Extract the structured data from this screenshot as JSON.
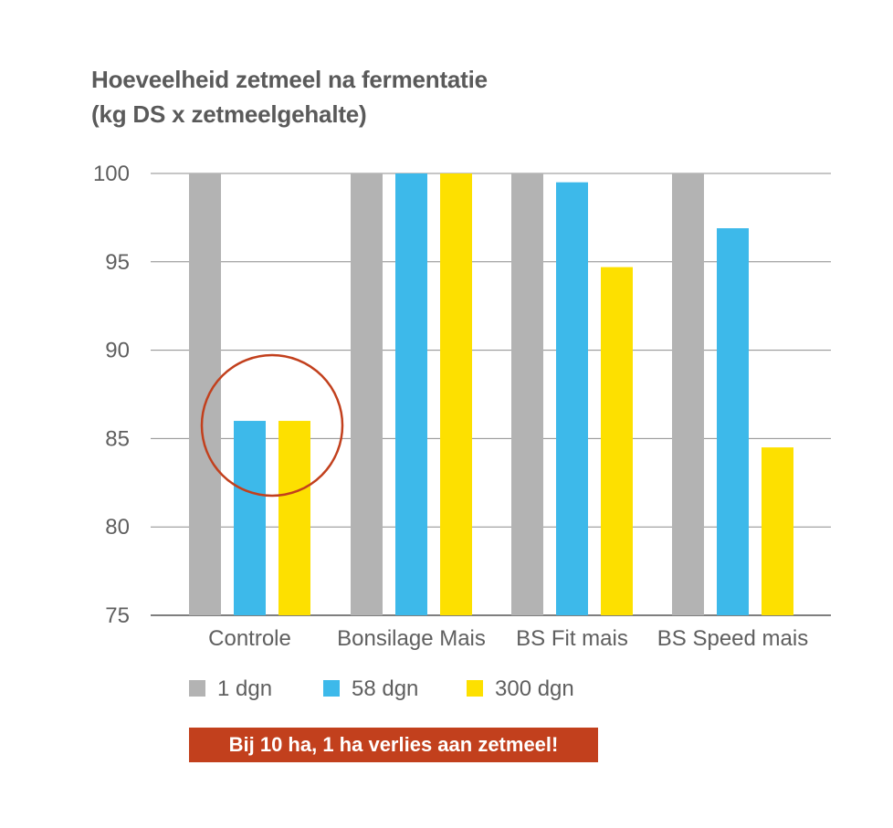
{
  "chart_data": {
    "type": "bar",
    "title_lines": [
      "Hoeveelheid zetmeel na fermentatie",
      "(kg DS x zetmeelgehalte)"
    ],
    "categories": [
      "Controle",
      "Bonsilage Mais",
      "BS Fit mais",
      "BS Speed mais"
    ],
    "series": [
      {
        "name": "1 dgn",
        "color": "#b3b3b3",
        "values": [
          100,
          100,
          100,
          100
        ]
      },
      {
        "name": "58 dgn",
        "color": "#3db9ea",
        "values": [
          86,
          100,
          99.5,
          96.9
        ]
      },
      {
        "name": "300 dgn",
        "color": "#fde000",
        "values": [
          86,
          100,
          94.7,
          84.5
        ]
      }
    ],
    "yticks": [
      75,
      80,
      85,
      90,
      95,
      100
    ],
    "ylim": [
      75,
      100
    ],
    "grid": true,
    "legend_position": "bottom-left",
    "highlight": {
      "category": "Controle",
      "shape": "circle",
      "color": "#c2401d"
    }
  },
  "callout": {
    "text": "Bij 10 ha, 1 ha verlies aan zetmeel!",
    "color": "#c2401d"
  }
}
